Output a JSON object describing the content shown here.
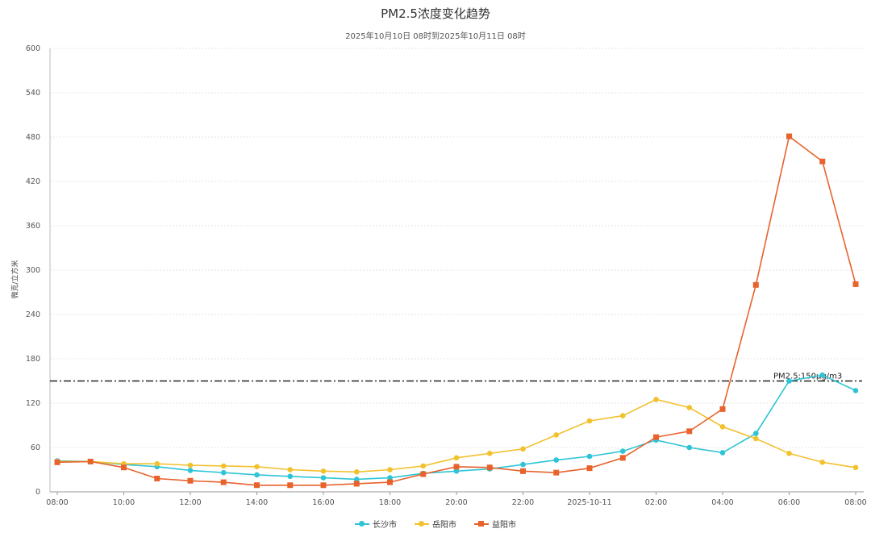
{
  "chart_data": {
    "type": "line",
    "title": "PM2.5浓度变化趋势",
    "subtitle": "2025年10月10日 08时到2025年10月11日 08时",
    "ylabel": "微克/立方米",
    "ylim": [
      0,
      600
    ],
    "yticks": [
      "0",
      "60",
      "120",
      "180",
      "240",
      "300",
      "360",
      "420",
      "480",
      "540",
      "600"
    ],
    "categories": [
      "08:00",
      "09:00",
      "10:00",
      "11:00",
      "12:00",
      "13:00",
      "14:00",
      "15:00",
      "16:00",
      "17:00",
      "18:00",
      "19:00",
      "20:00",
      "21:00",
      "22:00",
      "23:00",
      "2025-10-11",
      "01:00",
      "02:00",
      "03:00",
      "04:00",
      "05:00",
      "06:00",
      "07:00",
      "08:00"
    ],
    "xtick_labels": [
      "08:00",
      "10:00",
      "12:00",
      "14:00",
      "16:00",
      "18:00",
      "20:00",
      "22:00",
      "2025-10-11",
      "02:00",
      "04:00",
      "06:00",
      "08:00"
    ],
    "threshold": {
      "value": 150,
      "label": "PM2.5:150μg/m3",
      "color": "#222222"
    },
    "grid": true,
    "legend_position": "bottom",
    "series": [
      {
        "name": "长沙市",
        "color": "#2ec4d6",
        "marker": "circle",
        "values": [
          42,
          41,
          37,
          34,
          29,
          26,
          23,
          21,
          19,
          17,
          19,
          25,
          28,
          31,
          37,
          43,
          48,
          55,
          70,
          60,
          53,
          79,
          150,
          158,
          137
        ]
      },
      {
        "name": "岳阳市",
        "color": "#f2c12e",
        "marker": "circle",
        "values": [
          41,
          41,
          38,
          38,
          36,
          35,
          34,
          30,
          28,
          27,
          30,
          35,
          46,
          52,
          58,
          77,
          96,
          103,
          125,
          114,
          88,
          72,
          52,
          40,
          33
        ]
      },
      {
        "name": "益阳市",
        "color": "#e8622c",
        "marker": "square",
        "values": [
          40,
          41,
          33,
          18,
          15,
          13,
          9,
          9,
          9,
          11,
          13,
          24,
          34,
          33,
          28,
          26,
          32,
          46,
          74,
          82,
          112,
          280,
          481,
          447,
          281
        ]
      }
    ]
  }
}
